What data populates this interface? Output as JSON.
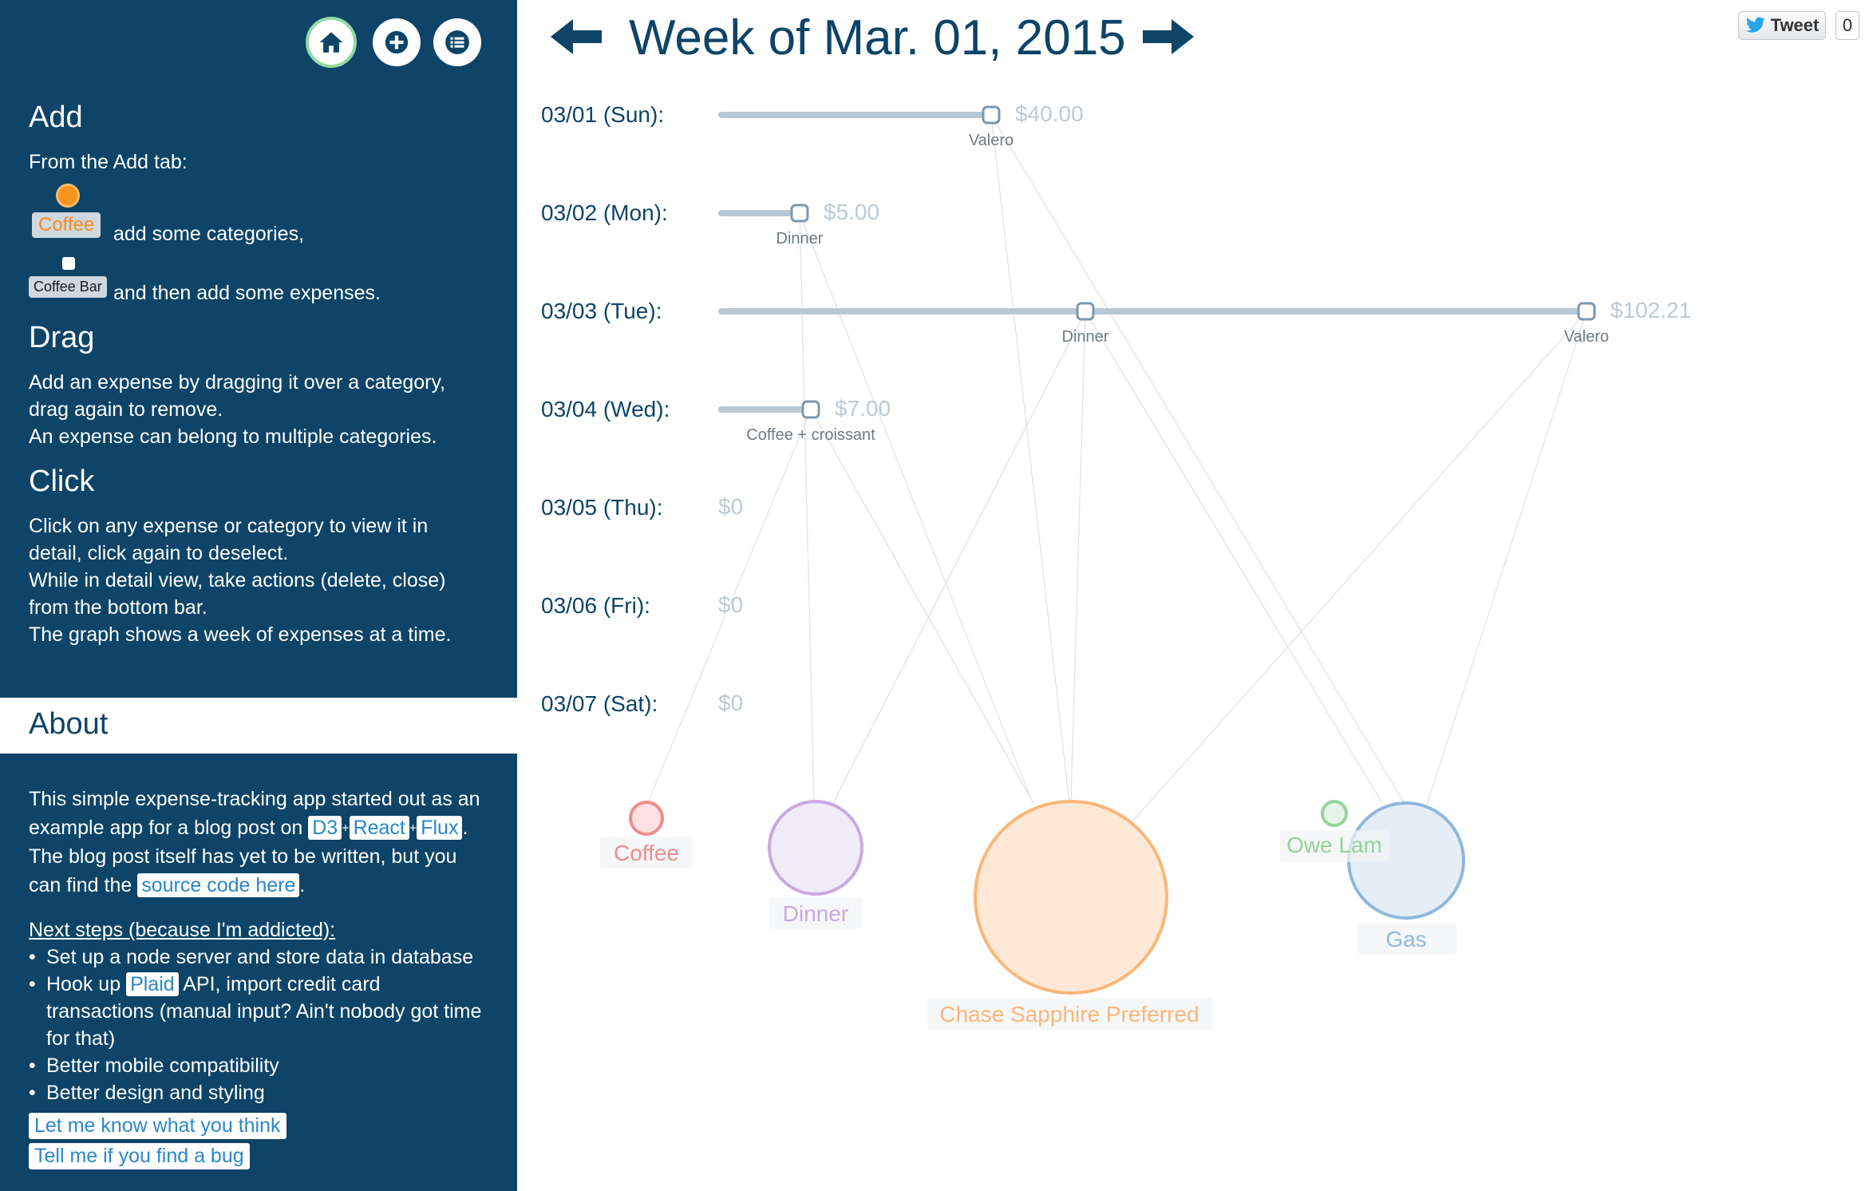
{
  "sidebar": {
    "nav": {
      "home_icon": "home-icon",
      "add_icon": "plus-circle-icon",
      "list_icon": "list-icon"
    },
    "add_heading": "Add",
    "add_intro": "From the Add tab:",
    "demo_category": "Coffee",
    "add_categories_text": "add some categories,",
    "demo_expense": "Coffee Bar",
    "add_expenses_text": "and then add some expenses.",
    "drag_heading": "Drag",
    "drag_text_1": "Add an expense by dragging it over a category,",
    "drag_text_2": "drag again to remove.",
    "drag_text_3": "An expense can belong to multiple categories.",
    "click_heading": "Click",
    "click_text_1": "Click on any expense or category to view it in",
    "click_text_2": "detail, click again to deselect.",
    "click_text_3": "While in detail view, take actions (delete, close)",
    "click_text_4": "from the bottom bar.",
    "click_text_5": "The graph shows a week of expenses at a time.",
    "about_heading": "About",
    "about_text_1": "This simple expense-tracking app started out as an",
    "about_text_2a": "example app for a blog post on",
    "link_d3": "D3",
    "link_react": "React",
    "link_flux": "Flux",
    "plus_sep": "+",
    "period": ".",
    "about_text_3": "The blog post itself has yet to be written, but you",
    "about_text_4a": "can find the",
    "link_source": "source code here",
    "next_steps_heading": "Next steps (because I'm addicted):",
    "step_1": "Set up a node server and store data in database",
    "step_2a": "Hook up",
    "link_plaid": "Plaid",
    "step_2b": "API, import credit card transactions (manual input? Ain't nobody got time for that)",
    "step_3": "Better mobile compatibility",
    "step_4": "Better design and styling",
    "link_feedback": "Let me know what you think",
    "link_bug": "Tell me if you find a bug"
  },
  "header": {
    "week_title": "Week of Mar. 01, 2015",
    "prev_icon": "arrow-left-icon",
    "next_icon": "arrow-right-icon",
    "tweet_label": "Tweet",
    "tweet_count": "0"
  },
  "colors": {
    "sidebar_bg": "#0d4467",
    "track": "#b8c8d4",
    "coffee": "#f08c8c",
    "dinner": "#c6a9e0",
    "chase": "#fbb678",
    "owe": "#93d39a",
    "gas": "#8fb8de"
  },
  "days": [
    {
      "label": "03/01 (Sun):",
      "total": "$40.00",
      "value": 40.0,
      "expenses": [
        {
          "name": "Valero",
          "amount": 40.0
        }
      ]
    },
    {
      "label": "03/02 (Mon):",
      "total": "$5.00",
      "value": 5.0,
      "expenses": [
        {
          "name": "Dinner",
          "amount": 5.0
        }
      ]
    },
    {
      "label": "03/03 (Tue):",
      "total": "$102.21",
      "value": 102.21,
      "expenses": [
        {
          "name": "Dinner",
          "amount": 50.0
        },
        {
          "name": "Valero",
          "amount": 52.21
        }
      ]
    },
    {
      "label": "03/04 (Wed):",
      "total": "$7.00",
      "value": 7.0,
      "expenses": [
        {
          "name": "Coffee + croissant",
          "amount": 7.0
        }
      ]
    },
    {
      "label": "03/05 (Thu):",
      "total": "$0",
      "value": 0,
      "expenses": []
    },
    {
      "label": "03/06 (Fri):",
      "total": "$0",
      "value": 0,
      "expenses": []
    },
    {
      "label": "03/07 (Sat):",
      "total": "$0",
      "value": 0,
      "expenses": []
    }
  ],
  "categories": [
    {
      "name": "Coffee",
      "color": "#f08c8c"
    },
    {
      "name": "Dinner",
      "color": "#c6a9e0"
    },
    {
      "name": "Chase Sapphire Preferred",
      "color": "#fbb678"
    },
    {
      "name": "Owe Lam",
      "color": "#93d39a"
    },
    {
      "name": "Gas",
      "color": "#8fb8de"
    }
  ]
}
